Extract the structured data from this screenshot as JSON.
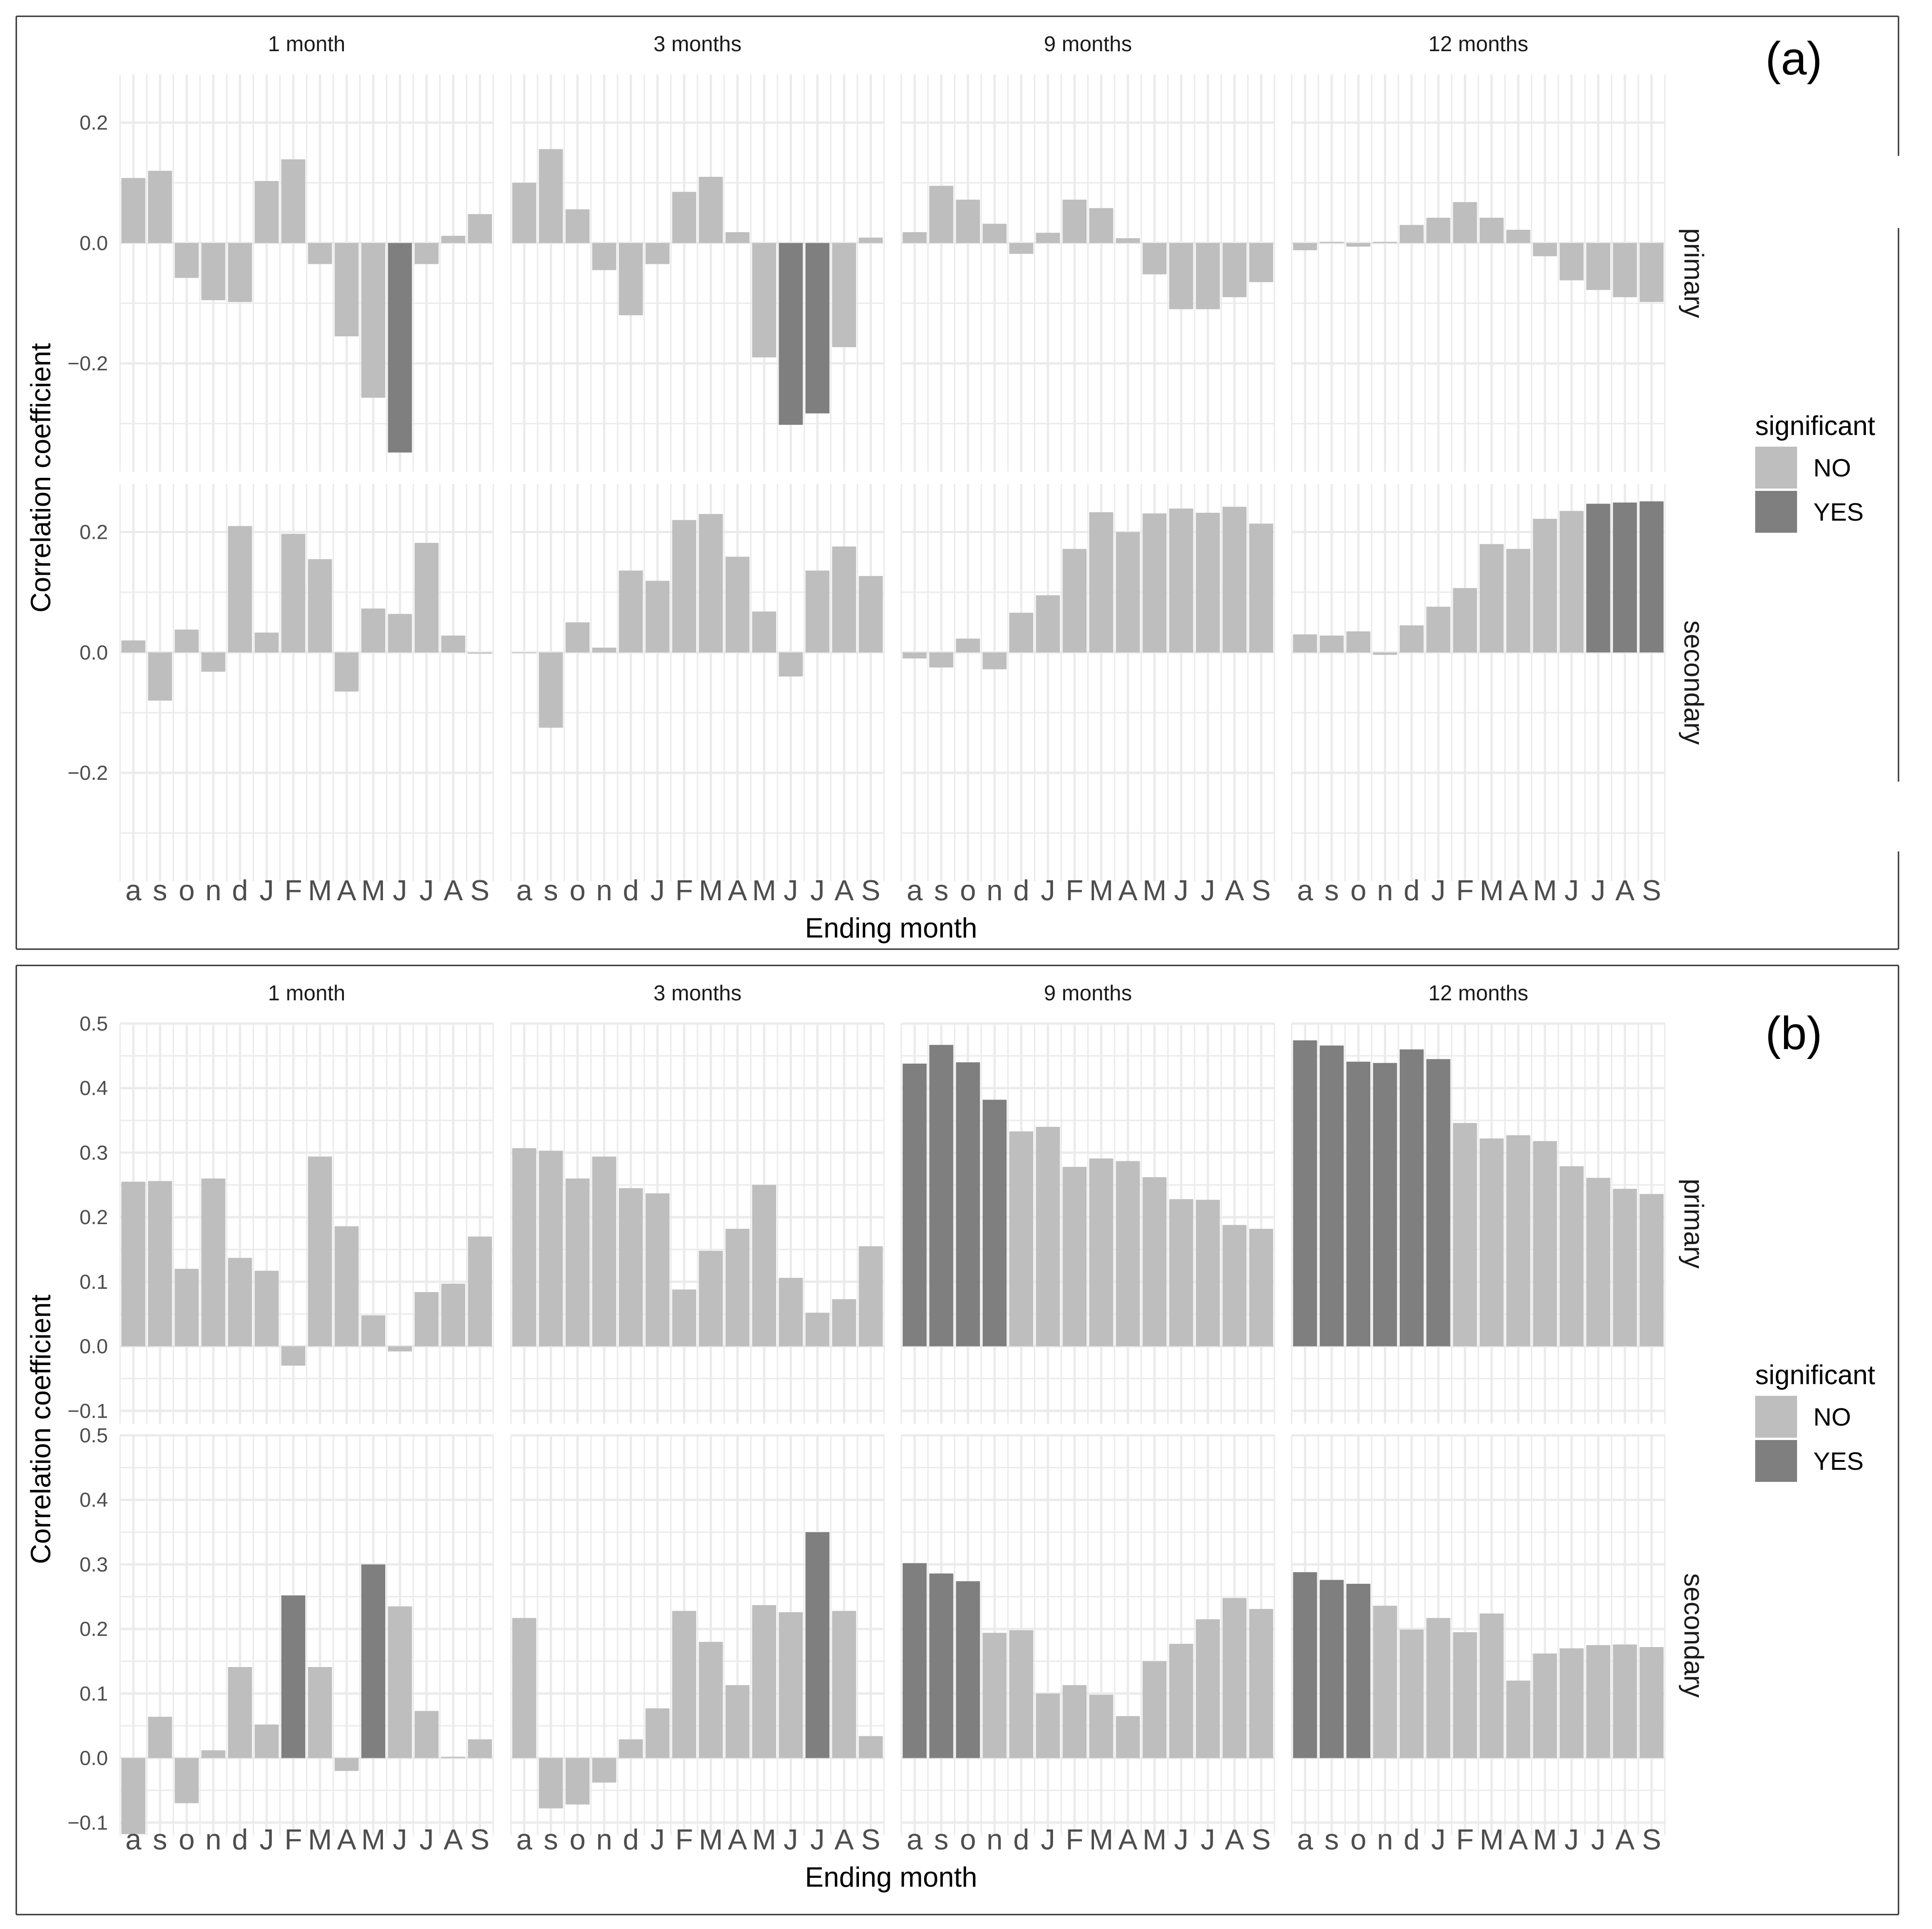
{
  "colors": {
    "no": "#bebebe",
    "yes": "#7f7f7f",
    "grid": "#ebebeb",
    "text": "#4d4d4d",
    "frame": "#333333"
  },
  "chart_data": [
    {
      "tag": "(a)",
      "type": "bar",
      "ylabel": "Correlation coefficient",
      "xlabel": "Ending month",
      "ylim": [
        -0.38,
        0.28
      ],
      "yticks": [
        0.2,
        0.0,
        -0.2
      ],
      "ytick_labels": [
        "0.2",
        "0.0",
        "−0.2"
      ],
      "categories": [
        "a",
        "s",
        "o",
        "n",
        "d",
        "J",
        "F",
        "M",
        "A",
        "M",
        "J",
        "J",
        "A",
        "S"
      ],
      "columns": [
        "1 month",
        "3 months",
        "9 months",
        "12 months"
      ],
      "rows": [
        "primary",
        "secondary"
      ],
      "legend": {
        "title": "significant",
        "items": [
          "NO",
          "YES"
        ]
      },
      "panels": [
        {
          "row": "primary",
          "col": "1 month",
          "values": [
            0.108,
            0.12,
            -0.058,
            -0.095,
            -0.098,
            0.103,
            0.139,
            -0.035,
            -0.155,
            -0.257,
            -0.348,
            -0.035,
            0.012,
            0.048
          ],
          "significant": [
            0,
            0,
            0,
            0,
            0,
            0,
            0,
            0,
            0,
            0,
            1,
            0,
            0,
            0
          ]
        },
        {
          "row": "primary",
          "col": "3 months",
          "values": [
            0.1,
            0.156,
            0.056,
            -0.045,
            -0.12,
            -0.035,
            0.085,
            0.11,
            0.018,
            -0.19,
            -0.302,
            -0.283,
            -0.173,
            0.009
          ],
          "significant": [
            0,
            0,
            0,
            0,
            0,
            0,
            0,
            0,
            0,
            0,
            1,
            1,
            0,
            0
          ]
        },
        {
          "row": "primary",
          "col": "9 months",
          "values": [
            0.018,
            0.095,
            0.072,
            0.032,
            -0.018,
            0.017,
            0.072,
            0.058,
            0.008,
            -0.052,
            -0.11,
            -0.11,
            -0.09,
            -0.065
          ],
          "significant": [
            0,
            0,
            0,
            0,
            0,
            0,
            0,
            0,
            0,
            0,
            0,
            0,
            0,
            0
          ]
        },
        {
          "row": "primary",
          "col": "12 months",
          "values": [
            -0.012,
            0.002,
            -0.006,
            0.002,
            0.03,
            0.042,
            0.068,
            0.042,
            0.022,
            -0.022,
            -0.062,
            -0.078,
            -0.09,
            -0.098
          ],
          "significant": [
            0,
            0,
            0,
            0,
            0,
            0,
            0,
            0,
            0,
            0,
            0,
            0,
            0,
            0
          ]
        },
        {
          "row": "secondary",
          "col": "1 month",
          "values": [
            0.02,
            -0.08,
            0.038,
            -0.032,
            0.21,
            0.033,
            0.197,
            0.155,
            -0.065,
            0.073,
            0.064,
            0.182,
            0.028,
            -0.002
          ],
          "significant": [
            0,
            0,
            0,
            0,
            0,
            0,
            0,
            0,
            0,
            0,
            0,
            0,
            0,
            0
          ]
        },
        {
          "row": "secondary",
          "col": "3 months",
          "values": [
            0.0,
            -0.125,
            0.05,
            0.008,
            0.136,
            0.119,
            0.22,
            0.23,
            0.159,
            0.068,
            -0.04,
            0.136,
            0.176,
            0.127
          ],
          "significant": [
            0,
            0,
            0,
            0,
            0,
            0,
            0,
            0,
            0,
            0,
            0,
            0,
            0,
            0
          ]
        },
        {
          "row": "secondary",
          "col": "9 months",
          "values": [
            -0.01,
            -0.025,
            0.023,
            -0.028,
            0.066,
            0.095,
            0.172,
            0.233,
            0.2,
            0.231,
            0.239,
            0.232,
            0.242,
            0.214
          ],
          "significant": [
            0,
            0,
            0,
            0,
            0,
            0,
            0,
            0,
            0,
            0,
            0,
            0,
            0,
            0
          ]
        },
        {
          "row": "secondary",
          "col": "12 months",
          "values": [
            0.03,
            0.028,
            0.035,
            -0.004,
            0.045,
            0.076,
            0.107,
            0.18,
            0.172,
            0.222,
            0.235,
            0.247,
            0.249,
            0.251
          ],
          "significant": [
            0,
            0,
            0,
            0,
            0,
            0,
            0,
            0,
            0,
            0,
            0,
            1,
            1,
            1
          ]
        }
      ]
    },
    {
      "tag": "(b)",
      "type": "bar",
      "ylabel": "Correlation coefficient",
      "xlabel": "Ending month",
      "ylim": [
        -0.12,
        0.5
      ],
      "yticks": [
        0.5,
        0.4,
        0.3,
        0.2,
        0.1,
        0.0,
        -0.1
      ],
      "ytick_labels": [
        "0.5",
        "0.4",
        "0.3",
        "0.2",
        "0.1",
        "0.0",
        "−0.1"
      ],
      "categories": [
        "a",
        "s",
        "o",
        "n",
        "d",
        "J",
        "F",
        "M",
        "A",
        "M",
        "J",
        "J",
        "A",
        "S"
      ],
      "columns": [
        "1 month",
        "3 months",
        "9 months",
        "12 months"
      ],
      "rows": [
        "primary",
        "secondary"
      ],
      "legend": {
        "title": "significant",
        "items": [
          "NO",
          "YES"
        ]
      },
      "panels": [
        {
          "row": "primary",
          "col": "1 month",
          "values": [
            0.255,
            0.256,
            0.12,
            0.26,
            0.137,
            0.117,
            -0.03,
            0.294,
            0.186,
            0.048,
            -0.008,
            0.084,
            0.097,
            0.17
          ],
          "significant": [
            0,
            0,
            0,
            0,
            0,
            0,
            0,
            0,
            0,
            0,
            0,
            0,
            0,
            0
          ]
        },
        {
          "row": "primary",
          "col": "3 months",
          "values": [
            0.307,
            0.303,
            0.26,
            0.294,
            0.245,
            0.237,
            0.088,
            0.148,
            0.182,
            0.25,
            0.106,
            0.052,
            0.073,
            0.155
          ],
          "significant": [
            0,
            0,
            0,
            0,
            0,
            0,
            0,
            0,
            0,
            0,
            0,
            0,
            0,
            0
          ]
        },
        {
          "row": "primary",
          "col": "9 months",
          "values": [
            0.438,
            0.467,
            0.44,
            0.382,
            0.333,
            0.34,
            0.278,
            0.291,
            0.287,
            0.262,
            0.228,
            0.227,
            0.188,
            0.182
          ],
          "significant": [
            1,
            1,
            1,
            1,
            0,
            0,
            0,
            0,
            0,
            0,
            0,
            0,
            0,
            0
          ]
        },
        {
          "row": "primary",
          "col": "12 months",
          "values": [
            0.474,
            0.466,
            0.441,
            0.439,
            0.46,
            0.445,
            0.346,
            0.322,
            0.327,
            0.318,
            0.279,
            0.261,
            0.244,
            0.236
          ],
          "significant": [
            1,
            1,
            1,
            1,
            1,
            1,
            0,
            0,
            0,
            0,
            0,
            0,
            0,
            0
          ]
        },
        {
          "row": "secondary",
          "col": "1 month",
          "values": [
            -0.118,
            0.064,
            -0.07,
            0.012,
            0.141,
            0.052,
            0.252,
            0.141,
            -0.02,
            0.3,
            0.235,
            0.073,
            0.002,
            0.029
          ],
          "significant": [
            0,
            0,
            0,
            0,
            0,
            0,
            1,
            0,
            0,
            1,
            0,
            0,
            0,
            0
          ]
        },
        {
          "row": "secondary",
          "col": "3 months",
          "values": [
            0.217,
            -0.078,
            -0.072,
            -0.038,
            0.029,
            0.077,
            0.228,
            0.18,
            0.113,
            0.237,
            0.226,
            0.35,
            0.228,
            0.034
          ],
          "significant": [
            0,
            0,
            0,
            0,
            0,
            0,
            0,
            0,
            0,
            0,
            0,
            1,
            0,
            0
          ]
        },
        {
          "row": "secondary",
          "col": "9 months",
          "values": [
            0.302,
            0.286,
            0.274,
            0.194,
            0.198,
            0.1,
            0.113,
            0.098,
            0.065,
            0.15,
            0.177,
            0.215,
            0.248,
            0.231
          ],
          "significant": [
            1,
            1,
            1,
            0,
            0,
            0,
            0,
            0,
            0,
            0,
            0,
            0,
            0,
            0
          ]
        },
        {
          "row": "secondary",
          "col": "12 months",
          "values": [
            0.288,
            0.276,
            0.27,
            0.236,
            0.199,
            0.217,
            0.195,
            0.224,
            0.12,
            0.162,
            0.17,
            0.175,
            0.176,
            0.172
          ],
          "significant": [
            1,
            1,
            1,
            0,
            0,
            0,
            0,
            0,
            0,
            0,
            0,
            0,
            0,
            0
          ]
        }
      ]
    }
  ]
}
